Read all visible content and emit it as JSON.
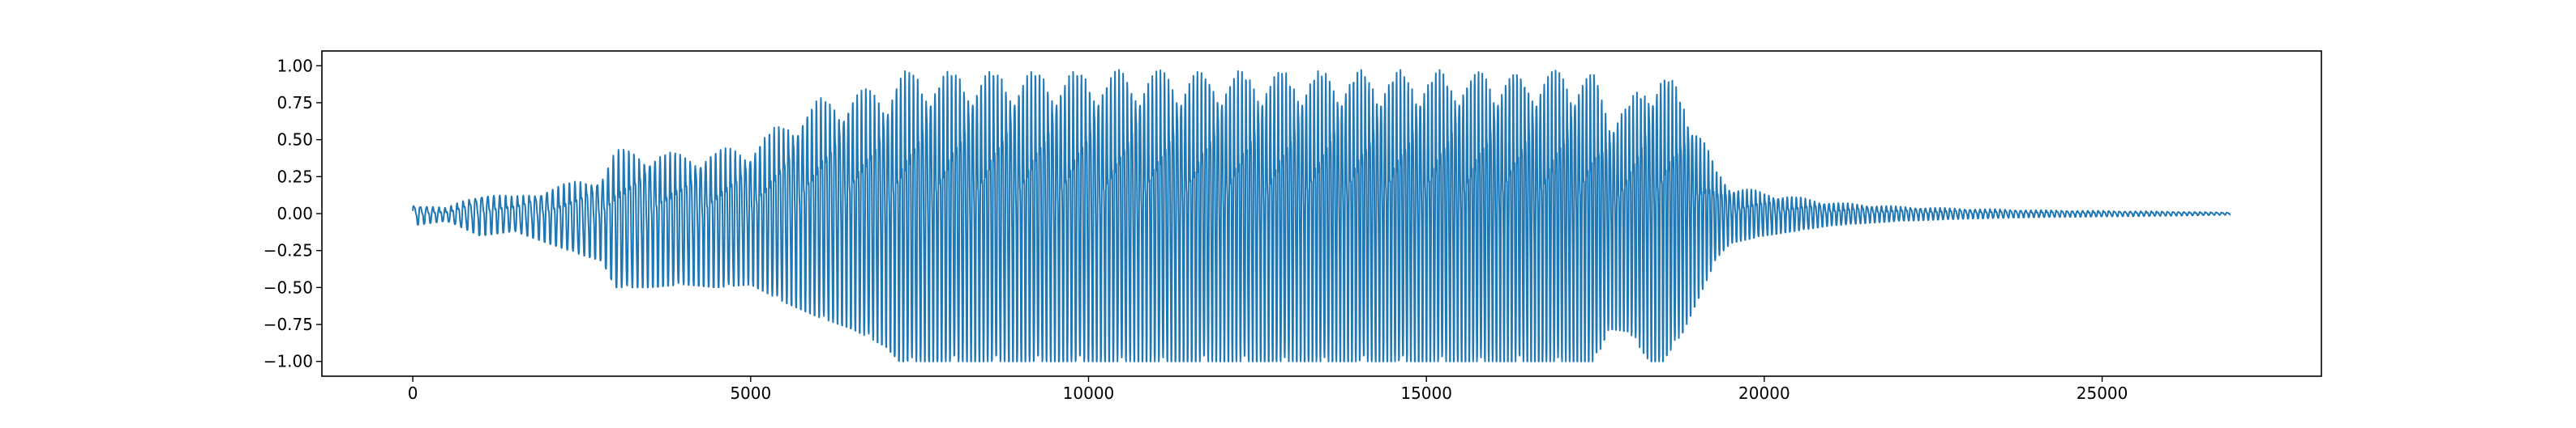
{
  "chart_data": {
    "type": "line",
    "title": "",
    "xlabel": "",
    "ylabel": "",
    "xlim": [
      -1345,
      28245
    ],
    "ylim": [
      -1.1,
      1.1
    ],
    "x_ticks": [
      0,
      5000,
      10000,
      15000,
      20000,
      25000
    ],
    "x_tick_labels": [
      "0",
      "5000",
      "10000",
      "15000",
      "20000",
      "25000"
    ],
    "y_ticks": [
      1.0,
      0.75,
      0.5,
      0.25,
      0.0,
      -0.25,
      -0.5,
      -0.75,
      -1.0
    ],
    "y_tick_labels": [
      "1.00",
      "0.75",
      "0.50",
      "0.25",
      "0.00",
      "−0.25",
      "−0.50",
      "−0.75",
      "−1.00"
    ],
    "grid": false,
    "legend": "none",
    "colors": {
      "line": "#1f77b4",
      "axes": "#000000",
      "background": "#ffffff"
    },
    "series": [
      {
        "envelope": {
          "x": [
            0,
            500,
            1000,
            1500,
            2000,
            2500,
            2800,
            3000,
            3500,
            4000,
            4500,
            5000,
            5500,
            6000,
            6500,
            7000,
            7200,
            7500,
            8000,
            9000,
            10000,
            11000,
            12000,
            13000,
            14000,
            15000,
            16000,
            17000,
            17500,
            17700,
            18000,
            18300,
            18500,
            18800,
            19000,
            19300,
            19500,
            20000,
            21000,
            22000,
            23000,
            24000,
            25000,
            26000,
            26900
          ],
          "upper": [
            0.07,
            0.04,
            0.15,
            0.12,
            0.18,
            0.24,
            0.28,
            0.45,
            0.45,
            0.42,
            0.45,
            0.48,
            0.65,
            0.8,
            0.85,
            0.9,
            1.0,
            1.0,
            1.0,
            1.0,
            1.0,
            1.0,
            1.0,
            1.0,
            1.0,
            1.0,
            1.0,
            1.0,
            1.0,
            0.75,
            0.78,
            1.0,
            1.0,
            0.85,
            0.65,
            0.3,
            0.2,
            0.15,
            0.08,
            0.05,
            0.035,
            0.025,
            0.02,
            0.015,
            0.008
          ],
          "lower": [
            -0.08,
            -0.05,
            -0.15,
            -0.12,
            -0.2,
            -0.28,
            -0.32,
            -0.5,
            -0.5,
            -0.48,
            -0.5,
            -0.48,
            -0.6,
            -0.7,
            -0.78,
            -0.9,
            -1.0,
            -1.0,
            -1.0,
            -1.0,
            -1.0,
            -1.0,
            -1.0,
            -1.0,
            -1.0,
            -1.0,
            -1.0,
            -1.0,
            -1.0,
            -0.78,
            -0.8,
            -1.0,
            -1.0,
            -0.8,
            -0.6,
            -0.3,
            -0.2,
            -0.15,
            -0.08,
            -0.05,
            -0.035,
            -0.025,
            -0.02,
            -0.015,
            -0.008
          ],
          "period": [
            95,
            90,
            90,
            88,
            85,
            82,
            80,
            78,
            76,
            75,
            74,
            72,
            70,
            68,
            66,
            64,
            64,
            63,
            62,
            62,
            62,
            61,
            60,
            59,
            58,
            58,
            57,
            57,
            57,
            58,
            58,
            58,
            58,
            58,
            60,
            62,
            64,
            66,
            70,
            72,
            74,
            76,
            78,
            80,
            80
          ]
        }
      }
    ]
  }
}
